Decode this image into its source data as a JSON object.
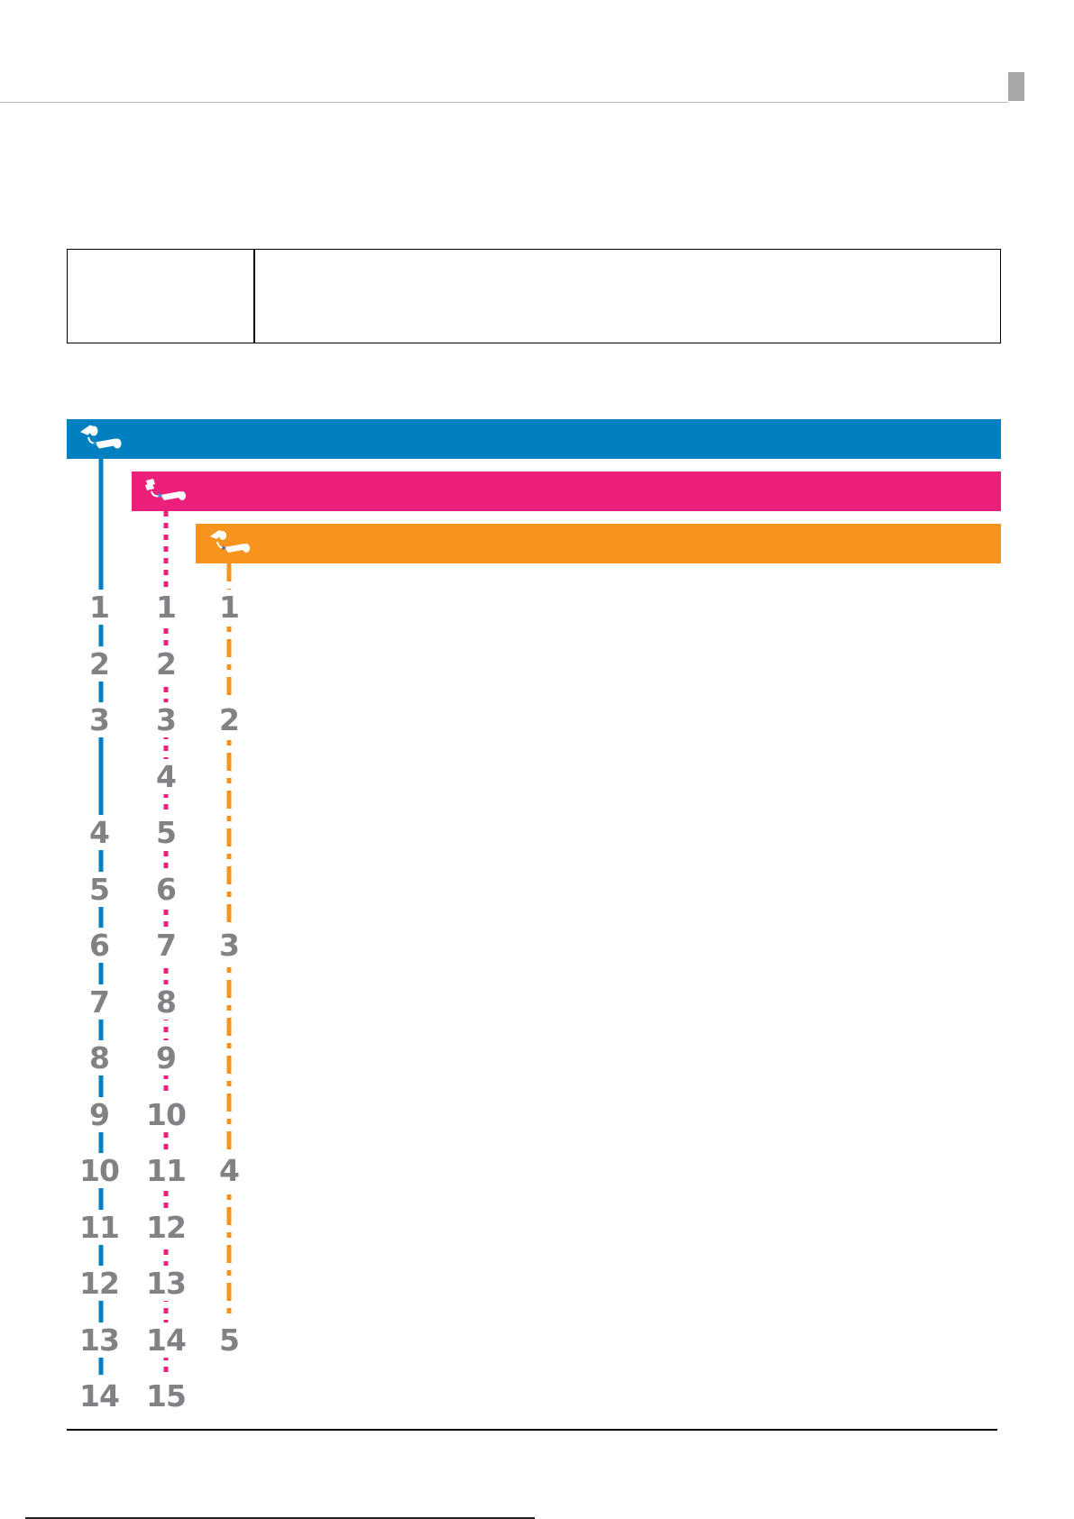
{
  "page": {
    "header": {
      "tab_color": "#a7a7a7",
      "rule_color": "#b9b9b9"
    }
  },
  "note_table": {
    "left_cell": "",
    "right_cell": ""
  },
  "procedures": [
    {
      "id": "roll-to-roll",
      "color": "#0080c0",
      "icon": "roll-to-roll-icon",
      "label": "",
      "line_style": "solid",
      "steps": [
        "1",
        "2",
        "3",
        "4",
        "5",
        "6",
        "7",
        "8",
        "9",
        "10",
        "11",
        "12",
        "13",
        "14"
      ]
    },
    {
      "id": "sheets-to-roll",
      "color": "#ec1f7b",
      "icon": "sheets-to-roll-icon",
      "label": "",
      "line_style": "dotted",
      "steps": [
        "1",
        "2",
        "3",
        "4",
        "5",
        "6",
        "7",
        "8",
        "9",
        "10",
        "11",
        "12",
        "13",
        "14",
        "15"
      ]
    },
    {
      "id": "roll-to-roll-same",
      "color": "#f7941e",
      "icon": "roll-to-roll-icon",
      "label": "",
      "line_style": "dash-dot",
      "steps": [
        "1",
        "2",
        "3",
        "4",
        "5"
      ]
    }
  ],
  "step_rows": {
    "blue": [
      1,
      2,
      3,
      5,
      6,
      7,
      8,
      9,
      10,
      11,
      12,
      13,
      14,
      15
    ],
    "pink": [
      1,
      2,
      3,
      4,
      5,
      6,
      7,
      8,
      9,
      10,
      11,
      12,
      13,
      14,
      15
    ],
    "orange": [
      1,
      3,
      7,
      11,
      14
    ]
  }
}
